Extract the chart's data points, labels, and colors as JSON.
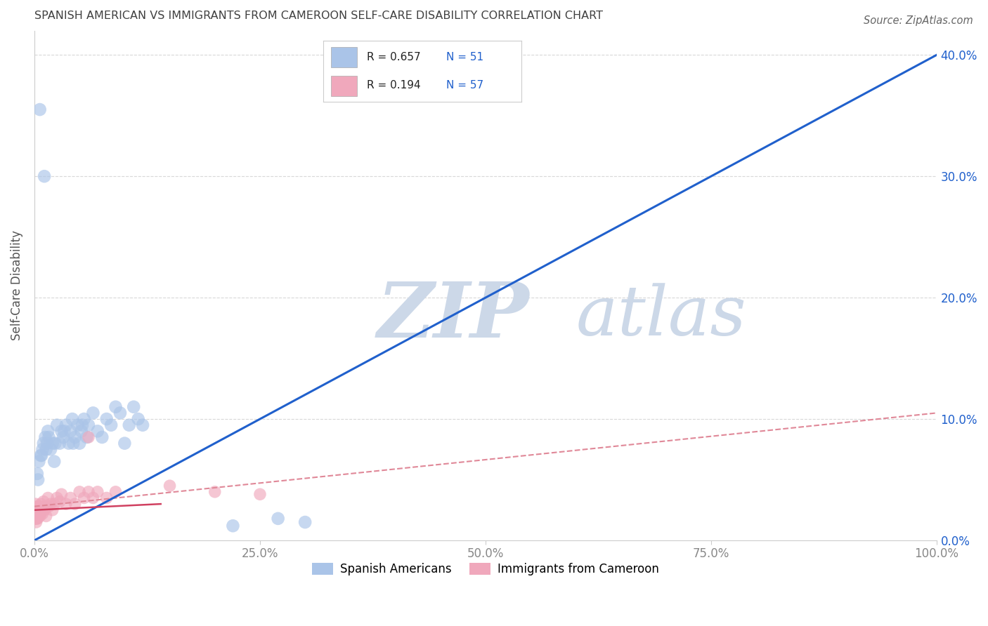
{
  "title": "SPANISH AMERICAN VS IMMIGRANTS FROM CAMEROON SELF-CARE DISABILITY CORRELATION CHART",
  "source": "Source: ZipAtlas.com",
  "ylabel": "Self-Care Disability",
  "r_spanish": 0.657,
  "n_spanish": 51,
  "r_cameroon": 0.194,
  "n_cameroon": 57,
  "xlim": [
    0,
    100
  ],
  "ylim": [
    0,
    42
  ],
  "ytick_labels": [
    "0.0%",
    "10.0%",
    "20.0%",
    "30.0%",
    "40.0%"
  ],
  "ytick_vals": [
    0,
    10,
    20,
    30,
    40
  ],
  "xtick_labels": [
    "0.0%",
    "25.0%",
    "50.0%",
    "75.0%",
    "100.0%"
  ],
  "xtick_vals": [
    0,
    25,
    50,
    75,
    100
  ],
  "color_spanish": "#aac4e8",
  "color_cameroon": "#f0a8bc",
  "line_color_spanish": "#2060cc",
  "line_color_cameroon_solid": "#d04060",
  "line_color_cameroon_dash": "#e08898",
  "watermark_zip": "ZIP",
  "watermark_atlas": "atlas",
  "watermark_color": "#ccd8e8",
  "legend_r_color": "#2060cc",
  "legend_n_color": "#2060cc",
  "background": "#ffffff",
  "grid_color": "#d8d8d8",
  "spine_color": "#cccccc",
  "tick_color": "#888888",
  "title_color": "#404040",
  "source_color": "#666666",
  "scatter_spanish": [
    [
      0.6,
      35.5
    ],
    [
      1.1,
      30.0
    ],
    [
      1.2,
      8.5
    ],
    [
      1.5,
      9.0
    ],
    [
      1.8,
      7.5
    ],
    [
      2.0,
      8.0
    ],
    [
      2.2,
      6.5
    ],
    [
      2.5,
      9.5
    ],
    [
      2.8,
      8.0
    ],
    [
      3.0,
      9.0
    ],
    [
      3.2,
      8.5
    ],
    [
      3.5,
      9.5
    ],
    [
      3.8,
      8.0
    ],
    [
      4.0,
      9.0
    ],
    [
      4.2,
      10.0
    ],
    [
      4.5,
      8.5
    ],
    [
      4.8,
      9.5
    ],
    [
      5.0,
      8.0
    ],
    [
      5.2,
      9.0
    ],
    [
      5.5,
      10.0
    ],
    [
      5.8,
      8.5
    ],
    [
      6.0,
      9.5
    ],
    [
      6.5,
      10.5
    ],
    [
      7.0,
      9.0
    ],
    [
      7.5,
      8.5
    ],
    [
      8.0,
      10.0
    ],
    [
      8.5,
      9.5
    ],
    [
      9.0,
      11.0
    ],
    [
      9.5,
      10.5
    ],
    [
      10.0,
      8.0
    ],
    [
      10.5,
      9.5
    ],
    [
      11.0,
      11.0
    ],
    [
      11.5,
      10.0
    ],
    [
      12.0,
      9.5
    ],
    [
      0.4,
      5.0
    ],
    [
      0.5,
      6.5
    ],
    [
      0.7,
      7.0
    ],
    [
      0.9,
      7.5
    ],
    [
      1.0,
      8.0
    ],
    [
      1.3,
      7.5
    ],
    [
      1.6,
      8.5
    ],
    [
      2.3,
      8.0
    ],
    [
      3.3,
      9.0
    ],
    [
      4.3,
      8.0
    ],
    [
      5.3,
      9.5
    ],
    [
      0.3,
      5.5
    ],
    [
      0.8,
      7.0
    ],
    [
      1.4,
      8.0
    ],
    [
      30.0,
      1.5
    ],
    [
      27.0,
      1.8
    ],
    [
      22.0,
      1.2
    ]
  ],
  "scatter_cameroon": [
    [
      0.1,
      1.8
    ],
    [
      0.15,
      2.2
    ],
    [
      0.2,
      1.5
    ],
    [
      0.25,
      2.5
    ],
    [
      0.3,
      2.0
    ],
    [
      0.35,
      1.8
    ],
    [
      0.4,
      2.8
    ],
    [
      0.45,
      2.2
    ],
    [
      0.5,
      2.5
    ],
    [
      0.6,
      2.0
    ],
    [
      0.7,
      3.0
    ],
    [
      0.8,
      2.5
    ],
    [
      0.9,
      2.2
    ],
    [
      1.0,
      3.2
    ],
    [
      1.1,
      2.5
    ],
    [
      1.2,
      2.8
    ],
    [
      1.3,
      2.0
    ],
    [
      1.4,
      2.8
    ],
    [
      1.5,
      3.5
    ],
    [
      1.6,
      2.8
    ],
    [
      1.8,
      3.0
    ],
    [
      2.0,
      2.5
    ],
    [
      2.2,
      3.0
    ],
    [
      2.5,
      3.5
    ],
    [
      2.8,
      3.2
    ],
    [
      3.0,
      3.8
    ],
    [
      3.5,
      3.0
    ],
    [
      4.0,
      3.5
    ],
    [
      4.5,
      3.0
    ],
    [
      5.0,
      4.0
    ],
    [
      5.5,
      3.5
    ],
    [
      6.0,
      4.0
    ],
    [
      6.5,
      3.5
    ],
    [
      7.0,
      4.0
    ],
    [
      8.0,
      3.5
    ],
    [
      9.0,
      4.0
    ],
    [
      0.12,
      2.0
    ],
    [
      0.18,
      1.8
    ],
    [
      0.22,
      2.2
    ],
    [
      0.28,
      1.8
    ],
    [
      0.32,
      2.5
    ],
    [
      0.38,
      2.0
    ],
    [
      0.42,
      2.3
    ],
    [
      0.48,
      2.8
    ],
    [
      0.55,
      2.5
    ],
    [
      0.65,
      2.2
    ],
    [
      0.75,
      2.8
    ],
    [
      6.0,
      8.5
    ],
    [
      15.0,
      4.5
    ],
    [
      20.0,
      4.0
    ],
    [
      25.0,
      3.8
    ],
    [
      0.05,
      2.0
    ],
    [
      0.08,
      1.8
    ],
    [
      0.1,
      2.5
    ],
    [
      0.15,
      3.0
    ],
    [
      0.2,
      2.0
    ],
    [
      0.25,
      2.5
    ]
  ],
  "line_spanish_x0": 0,
  "line_spanish_y0": 0,
  "line_spanish_x1": 100,
  "line_spanish_y1": 40,
  "line_cam_solid_x0": 0,
  "line_cam_solid_y0": 2.5,
  "line_cam_solid_x1": 14,
  "line_cam_solid_y1": 3.0,
  "line_cam_dash_x0": 0,
  "line_cam_dash_y0": 2.8,
  "line_cam_dash_x1": 100,
  "line_cam_dash_y1": 10.5
}
